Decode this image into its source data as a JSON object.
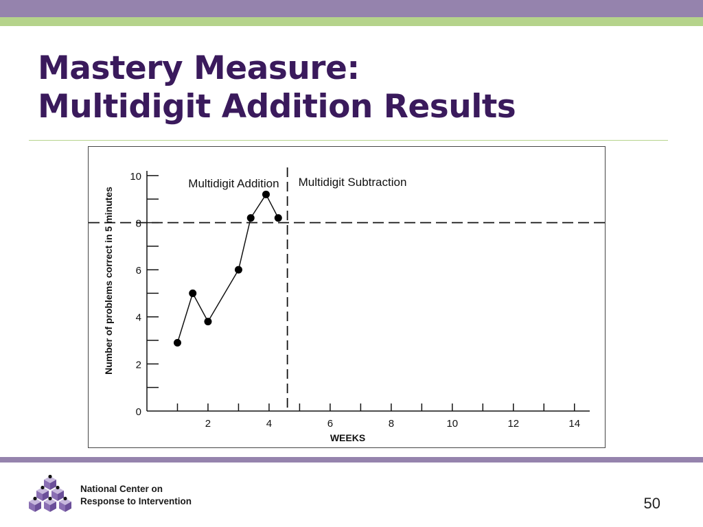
{
  "slide": {
    "title_line1": "Mastery Measure:",
    "title_line2": "Multidigit Addition Results",
    "page_number": "50",
    "colors": {
      "purple": "#9583ad",
      "green": "#b5d38b",
      "title": "#3a1a5c"
    }
  },
  "footer": {
    "org_line1": "National Center on",
    "org_line2": "Response to Intervention",
    "logo_icon": "stacked-cubes-logo-icon"
  },
  "chart_data": {
    "type": "line",
    "title": "",
    "xlabel": "WEEKS",
    "ylabel": "Number of problems correct in 5 minutes",
    "xlim": [
      0,
      14.5
    ],
    "ylim": [
      0,
      10.2
    ],
    "x_ticks": [
      2,
      4,
      6,
      8,
      10,
      12,
      14
    ],
    "x_minor_ticks": [
      1,
      3,
      5,
      7,
      9,
      11,
      13
    ],
    "y_ticks": [
      0,
      2,
      4,
      6,
      8,
      10
    ],
    "y_minor_ticks": [
      1,
      3,
      5,
      7,
      9
    ],
    "grid": false,
    "series": [
      {
        "x": [
          1,
          1.5,
          2,
          3,
          3.4,
          3.9,
          4.3
        ],
        "y": [
          2.9,
          5.0,
          3.8,
          6.0,
          8.2,
          9.2,
          8.2
        ]
      }
    ],
    "goal_line": {
      "y": 8
    },
    "phase_line": {
      "x": 4.6
    },
    "phases": [
      {
        "label": "Multidigit Addition"
      },
      {
        "label": "Multidigit Subtraction"
      }
    ]
  }
}
